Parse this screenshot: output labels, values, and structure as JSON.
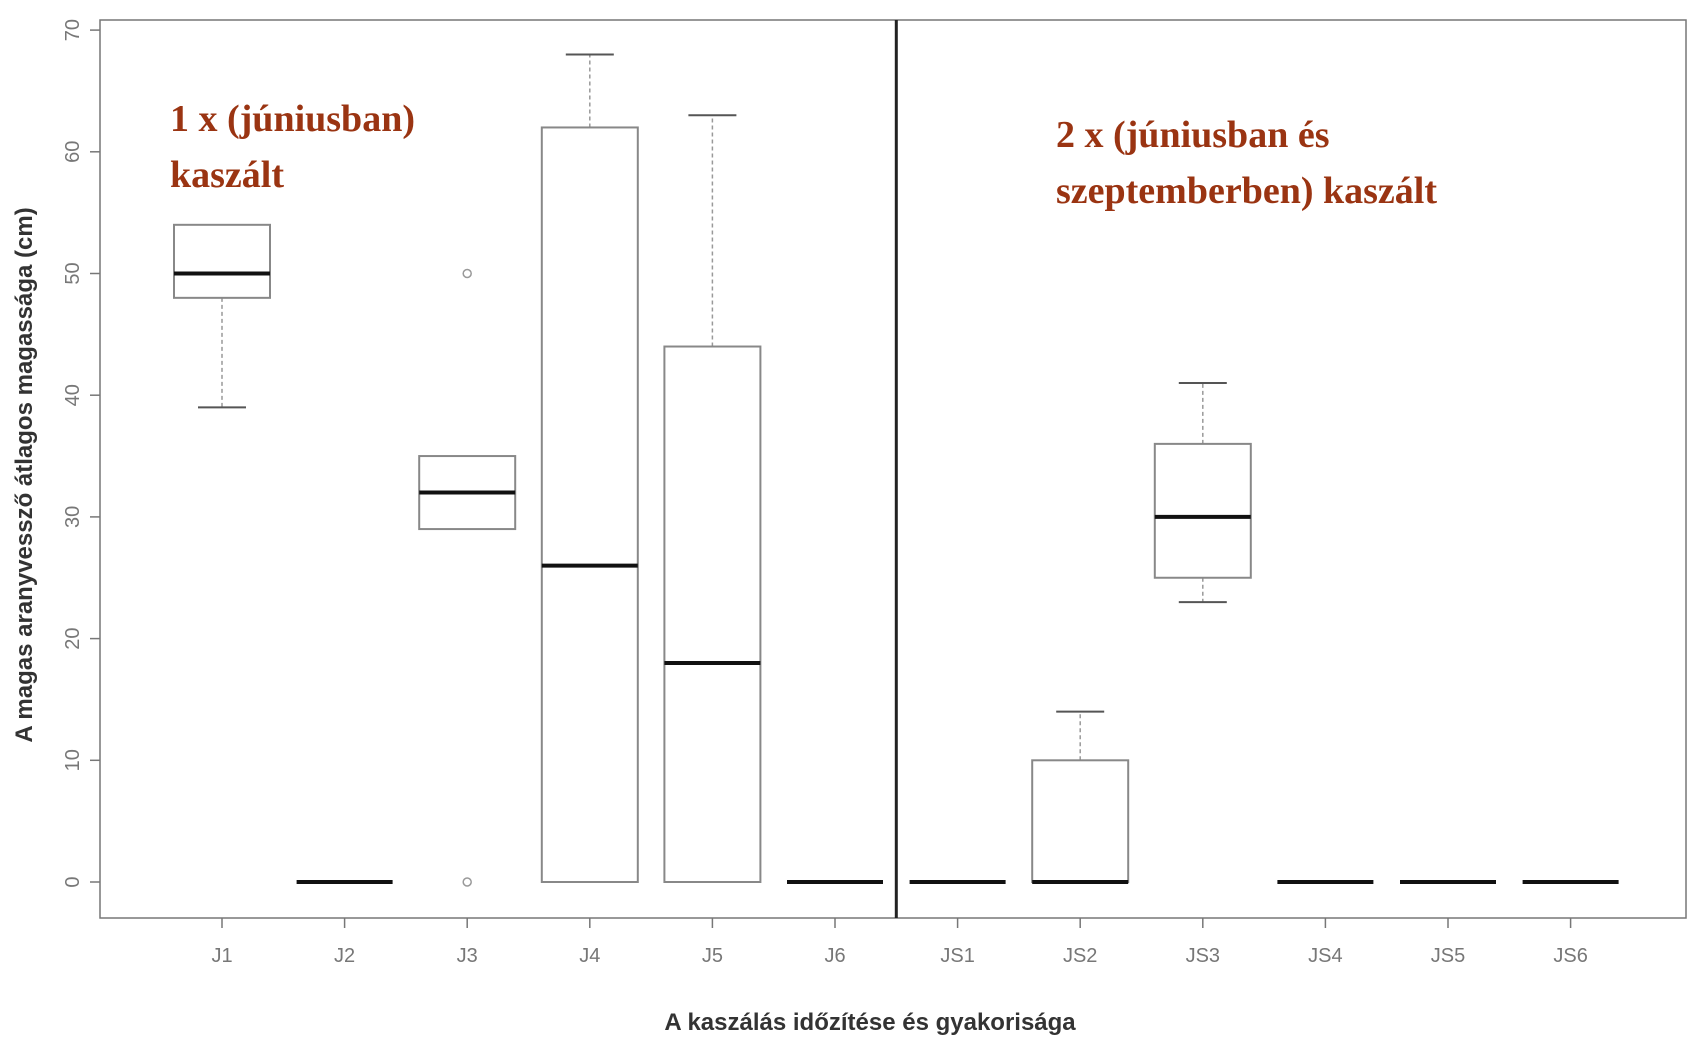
{
  "chart_data": {
    "type": "box",
    "xlabel": "A kaszálás időzítése és gyakorisága",
    "ylabel": "A magas aranyvessző átlagos magassága (cm)",
    "ylim": [
      0,
      70
    ],
    "yticks": [
      0,
      10,
      20,
      30,
      40,
      50,
      60,
      70
    ],
    "grid": false,
    "categories": [
      "J1",
      "J2",
      "J3",
      "J4",
      "J5",
      "J6",
      "JS1",
      "JS2",
      "JS3",
      "JS4",
      "JS5",
      "JS6"
    ],
    "boxes": [
      {
        "min": 39,
        "q1": 48,
        "median": 50,
        "q3": 54,
        "max": 54,
        "outliers": []
      },
      {
        "min": 0,
        "q1": 0,
        "median": 0,
        "q3": 0,
        "max": 0,
        "outliers": []
      },
      {
        "min": 29,
        "q1": 29,
        "median": 32,
        "q3": 35,
        "max": 35,
        "outliers": [
          50,
          0
        ]
      },
      {
        "min": 0,
        "q1": 0,
        "median": 26,
        "q3": 62,
        "max": 68,
        "outliers": []
      },
      {
        "min": 0,
        "q1": 0,
        "median": 18,
        "q3": 44,
        "max": 63,
        "outliers": []
      },
      {
        "min": 0,
        "q1": 0,
        "median": 0,
        "q3": 0,
        "max": 0,
        "outliers": []
      },
      {
        "min": 0,
        "q1": 0,
        "median": 0,
        "q3": 0,
        "max": 0,
        "outliers": []
      },
      {
        "min": 0,
        "q1": 0,
        "median": 0,
        "q3": 10,
        "max": 14,
        "outliers": []
      },
      {
        "min": 23,
        "q1": 25,
        "median": 30,
        "q3": 36,
        "max": 41,
        "outliers": []
      },
      {
        "min": 0,
        "q1": 0,
        "median": 0,
        "q3": 0,
        "max": 0,
        "outliers": []
      },
      {
        "min": 0,
        "q1": 0,
        "median": 0,
        "q3": 0,
        "max": 0,
        "outliers": []
      },
      {
        "min": 0,
        "q1": 0,
        "median": 0,
        "q3": 0,
        "max": 0,
        "outliers": []
      }
    ],
    "divider_after_category": "J6",
    "annotations": [
      {
        "id": "group1",
        "lines": [
          "1 x (júniusban)",
          "kaszált"
        ]
      },
      {
        "id": "group2",
        "lines": [
          "2 x (júniusban és",
          "szeptemberben) kaszált"
        ]
      }
    ],
    "colors": {
      "annotation": "#9a3412",
      "box_stroke": "#888888",
      "median": "#111111"
    }
  }
}
